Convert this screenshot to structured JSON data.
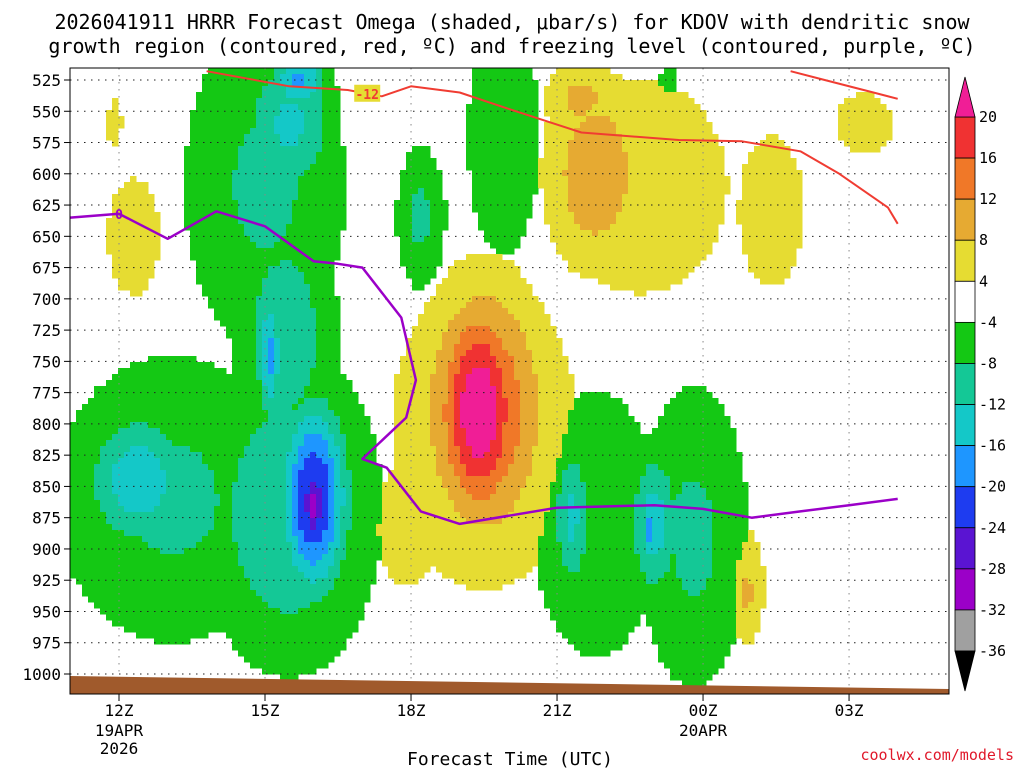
{
  "chart_data": {
    "type": "heatmap",
    "title_line1": "2026041911 HRRR Forecast Omega (shaded, μbar/s) for KDOV with dendritic snow",
    "title_line2": "growth region (contoured, red, ºC) and freezing level (contoured, purple, ºC)",
    "xlabel": "Forecast Time (UTC)",
    "credit": "coolwx.com/models",
    "y_levels": [
      525,
      550,
      575,
      600,
      625,
      650,
      675,
      700,
      725,
      750,
      775,
      800,
      825,
      850,
      875,
      900,
      925,
      950,
      975,
      1000
    ],
    "y_ticks": [
      "525",
      "550",
      "575",
      "600",
      "625",
      "650",
      "675",
      "700",
      "725",
      "750",
      "775",
      "800",
      "825",
      "850",
      "875",
      "900",
      "925",
      "950",
      "975",
      "1000"
    ],
    "x_range_hours": [
      11,
      28
    ],
    "x_ticks": [
      {
        "hour": 12,
        "label": "12Z",
        "sub1": "19APR",
        "sub2": "2026"
      },
      {
        "hour": 15,
        "label": "15Z",
        "sub1": "",
        "sub2": ""
      },
      {
        "hour": 18,
        "label": "18Z",
        "sub1": "",
        "sub2": ""
      },
      {
        "hour": 21,
        "label": "21Z",
        "sub1": "",
        "sub2": ""
      },
      {
        "hour": 24,
        "label": "00Z",
        "sub1": "20APR",
        "sub2": ""
      },
      {
        "hour": 27,
        "label": "03Z",
        "sub1": "",
        "sub2": ""
      }
    ],
    "colorbar": {
      "levels": [
        -36,
        -32,
        -28,
        -24,
        -20,
        -16,
        -12,
        -8,
        -4,
        4,
        8,
        12,
        16,
        20
      ],
      "labels": [
        "20",
        "16",
        "12",
        "8",
        "4",
        "-4",
        "-8",
        "-12",
        "-16",
        "-20",
        "-24",
        "-28",
        "-32",
        "-36"
      ],
      "colors_low_to_high": [
        "#a0a0a0",
        "#9b00c8",
        "#5a14d2",
        "#1e3cf0",
        "#1e96ff",
        "#14c8c8",
        "#14c896",
        "#14c814",
        "#ffffff",
        "#e6dc32",
        "#e6aa32",
        "#f07828",
        "#f03232",
        "#f01e96"
      ],
      "under_color": "#000000",
      "over_color": "#f01e96"
    },
    "freezing_level_label": "0",
    "freezing_level": [
      {
        "hour": 11.0,
        "p": 635
      },
      {
        "hour": 12.0,
        "p": 632
      },
      {
        "hour": 13.0,
        "p": 652
      },
      {
        "hour": 14.0,
        "p": 630
      },
      {
        "hour": 15.0,
        "p": 642
      },
      {
        "hour": 16.0,
        "p": 670
      },
      {
        "hour": 16.5,
        "p": 672
      },
      {
        "hour": 17.0,
        "p": 675
      },
      {
        "hour": 17.8,
        "p": 715
      },
      {
        "hour": 18.1,
        "p": 765
      },
      {
        "hour": 17.9,
        "p": 795
      },
      {
        "hour": 17.0,
        "p": 828
      },
      {
        "hour": 17.5,
        "p": 835
      },
      {
        "hour": 18.2,
        "p": 870
      },
      {
        "hour": 19.0,
        "p": 880
      },
      {
        "hour": 21.0,
        "p": 867
      },
      {
        "hour": 23.0,
        "p": 865
      },
      {
        "hour": 24.0,
        "p": 868
      },
      {
        "hour": 25.0,
        "p": 875
      },
      {
        "hour": 26.0,
        "p": 870
      },
      {
        "hour": 27.0,
        "p": 865
      },
      {
        "hour": 28.0,
        "p": 860
      }
    ],
    "dgz_label": "-12",
    "dgz_contour": [
      {
        "hour": 13.8,
        "p": 518
      },
      {
        "hour": 15.5,
        "p": 530
      },
      {
        "hour": 16.7,
        "p": 533
      },
      {
        "hour": 17.4,
        "p": 538
      },
      {
        "hour": 18.0,
        "p": 530
      },
      {
        "hour": 19.0,
        "p": 535
      },
      {
        "hour": 20.0,
        "p": 548
      },
      {
        "hour": 21.5,
        "p": 567
      },
      {
        "hour": 23.5,
        "p": 573
      },
      {
        "hour": 24.8,
        "p": 574
      },
      {
        "hour": 26.0,
        "p": 582
      },
      {
        "hour": 26.8,
        "p": 600
      },
      {
        "hour": 27.8,
        "p": 627
      },
      {
        "hour": 28.0,
        "p": 640
      }
    ],
    "dgz_contour_upper": [
      {
        "hour": 25.8,
        "p": 518
      },
      {
        "hour": 26.5,
        "p": 525
      },
      {
        "hour": 27.5,
        "p": 535
      },
      {
        "hour": 28.0,
        "p": 540
      }
    ],
    "omega_features": [
      {
        "name": "upper-left-positive",
        "hour": 12.3,
        "p": 650,
        "dh": 0.8,
        "dp": 70,
        "value": 5
      },
      {
        "name": "upper-left-positive-top",
        "hour": 11.9,
        "p": 560,
        "dh": 0.3,
        "dp": 40,
        "value": 4.5
      },
      {
        "name": "upper-left-rising-column",
        "hour": 15.0,
        "p": 610,
        "dh": 1.3,
        "dp": 105,
        "value": -9
      },
      {
        "name": "upper-left-rising-core",
        "hour": 15.5,
        "p": 560,
        "dh": 0.7,
        "dp": 45,
        "value": -13
      },
      {
        "name": "upper-left-rising-top",
        "hour": 15.7,
        "p": 525,
        "dh": 0.4,
        "dp": 20,
        "value": -17
      },
      {
        "name": "mid-column-rising",
        "hour": 15.4,
        "p": 730,
        "dh": 0.8,
        "dp": 75,
        "value": -11
      },
      {
        "name": "mid-column-rising-core",
        "hour": 15.1,
        "p": 745,
        "dh": 0.2,
        "dp": 40,
        "value": -17
      },
      {
        "name": "lower-left-rising",
        "hour": 13.1,
        "p": 860,
        "dh": 1.9,
        "dp": 90,
        "value": -9
      },
      {
        "name": "lower-left-rising-core",
        "hour": 12.4,
        "p": 845,
        "dh": 0.8,
        "dp": 40,
        "value": -15
      },
      {
        "name": "lower-rising-column",
        "hour": 15.5,
        "p": 870,
        "dh": 1.3,
        "dp": 90,
        "value": -12
      },
      {
        "name": "lower-rising-core",
        "hour": 16.0,
        "p": 860,
        "dh": 0.5,
        "dp": 55,
        "value": -25
      },
      {
        "name": "lower-rising-max",
        "hour": 16.0,
        "p": 865,
        "dh": 0.2,
        "dp": 25,
        "value": -31
      },
      {
        "name": "small-rising-pocket",
        "hour": 18.2,
        "p": 635,
        "dh": 0.4,
        "dp": 45,
        "value": -9
      },
      {
        "name": "mid-upper-rising-band",
        "hour": 19.9,
        "p": 570,
        "dh": 0.7,
        "dp": 90,
        "value": -7
      },
      {
        "name": "upper-rising-notch",
        "hour": 23.3,
        "p": 525,
        "dh": 0.2,
        "dp": 15,
        "value": -6
      },
      {
        "name": "sinking-column",
        "hour": 19.5,
        "p": 805,
        "dh": 1.4,
        "dp": 95,
        "value": 10
      },
      {
        "name": "sinking-core",
        "hour": 19.5,
        "p": 790,
        "dh": 0.9,
        "dp": 75,
        "value": 17
      },
      {
        "name": "sinking-max",
        "hour": 19.4,
        "p": 790,
        "dh": 0.6,
        "dp": 60,
        "value": 24
      },
      {
        "name": "sinking-lower-tail",
        "hour": 17.9,
        "p": 880,
        "dh": 0.7,
        "dp": 55,
        "value": 6
      },
      {
        "name": "upper-sinking-broad",
        "hour": 22.7,
        "p": 610,
        "dh": 2.0,
        "dp": 95,
        "value": 6
      },
      {
        "name": "upper-sinking-core",
        "hour": 21.8,
        "p": 600,
        "dh": 0.8,
        "dp": 60,
        "value": 11
      },
      {
        "name": "upper-sinking-top",
        "hour": 21.5,
        "p": 540,
        "dh": 0.6,
        "dp": 25,
        "value": 9
      },
      {
        "name": "upper-right-sinking",
        "hour": 25.4,
        "p": 630,
        "dh": 1.0,
        "dp": 90,
        "value": 5
      },
      {
        "name": "upper-right-sinking-tall",
        "hour": 27.3,
        "p": 560,
        "dh": 1.2,
        "dp": 50,
        "value": 4.5
      },
      {
        "name": "lower-right-rising-a",
        "hour": 21.8,
        "p": 880,
        "dh": 1.1,
        "dp": 90,
        "value": -8
      },
      {
        "name": "lower-right-rising-a-core",
        "hour": 21.3,
        "p": 875,
        "dh": 0.3,
        "dp": 45,
        "value": -13
      },
      {
        "name": "lower-right-rising-b",
        "hour": 23.8,
        "p": 890,
        "dh": 0.9,
        "dp": 95,
        "value": -9
      },
      {
        "name": "lower-right-rising-b-core",
        "hour": 23.0,
        "p": 880,
        "dh": 0.4,
        "dp": 45,
        "value": -14
      },
      {
        "name": "lower-right-rising-b-max",
        "hour": 22.9,
        "p": 885,
        "dh": 0.1,
        "dp": 20,
        "value": -18
      },
      {
        "name": "small-sinking-lobe",
        "hour": 24.9,
        "p": 930,
        "dh": 0.4,
        "dp": 50,
        "value": 6
      },
      {
        "name": "small-sinking-lobe-core",
        "hour": 24.9,
        "p": 935,
        "dh": 0.2,
        "dp": 25,
        "value": 9
      }
    ]
  }
}
